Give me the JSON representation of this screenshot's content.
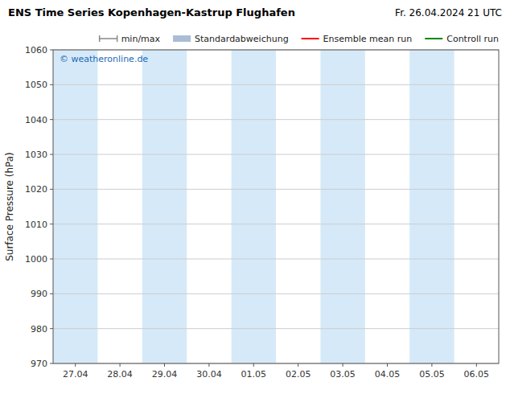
{
  "chart_data": {
    "type": "line",
    "title": "ENS Time Series Kopenhagen-Kastrup Flughafen",
    "subtitle": "Fr. 26.04.2024 21 UTC",
    "ylabel": "Surface Pressure (hPa)",
    "categories": [
      "27.04",
      "28.04",
      "29.04",
      "30.04",
      "01.05",
      "02.05",
      "03.05",
      "04.05",
      "05.05",
      "06.05"
    ],
    "ylim": [
      970,
      1060
    ],
    "yticks": [
      970,
      980,
      990,
      1000,
      1010,
      1020,
      1030,
      1040,
      1050,
      1060
    ],
    "grid": true,
    "legend": "upper right",
    "bands": {
      "categories": [
        "27.04",
        "29.04",
        "01.05",
        "03.05",
        "05.05"
      ],
      "color": "#d6e9f8"
    },
    "annotation": {
      "text": "© weatheronline.de",
      "color": "#1a6ab5"
    },
    "series": [
      {
        "name": "min/max",
        "type": "range",
        "color": "#888888",
        "values": [
          null,
          null,
          null,
          null,
          null,
          null,
          null,
          null,
          null,
          null
        ]
      },
      {
        "name": "Standardabweichung",
        "type": "area",
        "color": "#aabdd4",
        "values": [
          null,
          null,
          null,
          null,
          null,
          null,
          null,
          null,
          null,
          null
        ]
      },
      {
        "name": "Ensemble mean run",
        "type": "line",
        "color": "#ff0000",
        "values": [
          null,
          null,
          null,
          null,
          null,
          null,
          null,
          null,
          null,
          null
        ]
      },
      {
        "name": "Controll run",
        "type": "line",
        "color": "#008800",
        "values": [
          null,
          null,
          null,
          null,
          null,
          null,
          null,
          null,
          null,
          null
        ]
      }
    ]
  }
}
